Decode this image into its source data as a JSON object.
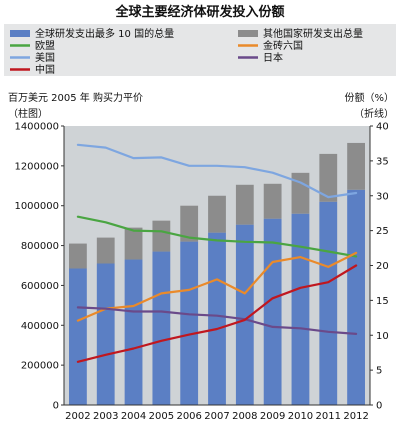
{
  "chart_data": {
    "type": "bar",
    "title": "全球主要经济体研发投入份额",
    "left_axis_caption": "百万美元 2005 年 购买力平价",
    "left_axis_sub": "（柱图）",
    "right_axis_caption": "份额（%）",
    "right_axis_sub": "（折线）",
    "categories": [
      "2002",
      "2003",
      "2004",
      "2005",
      "2006",
      "2007",
      "2008",
      "2009",
      "2010",
      "2011",
      "2012"
    ],
    "y_left": {
      "lim": [
        0,
        1400000
      ],
      "ticks": [
        "0",
        "200000",
        "400000",
        "600000",
        "800000",
        "1000000",
        "1200000",
        "1400000"
      ]
    },
    "y_right": {
      "lim": [
        0,
        40
      ],
      "ticks": [
        "0",
        "5",
        "10",
        "15",
        "20",
        "25",
        "30",
        "35",
        "40"
      ]
    },
    "stack_series": [
      {
        "name": "全球研发支出最多 10 国的总量",
        "color": "#5b7fc4",
        "values": [
          685000,
          710000,
          730000,
          770000,
          820000,
          865000,
          905000,
          935000,
          960000,
          1020000,
          1080000
        ]
      },
      {
        "name": "其他国家研发支出总量",
        "color": "#8c8c8c",
        "values": [
          125000,
          130000,
          160000,
          155000,
          180000,
          185000,
          200000,
          175000,
          205000,
          240000,
          235000
        ]
      }
    ],
    "line_series": [
      {
        "name": "欧盟",
        "color": "#4aa542",
        "values": [
          27.0,
          26.2,
          25.0,
          24.9,
          24.0,
          23.6,
          23.4,
          23.3,
          22.7,
          22.0,
          21.3
        ]
      },
      {
        "name": "金砖六国",
        "color": "#ea8a2a",
        "values": [
          12.1,
          13.8,
          14.2,
          16.0,
          16.5,
          18.0,
          16.0,
          20.5,
          21.2,
          19.8,
          21.8
        ]
      },
      {
        "name": "美国",
        "color": "#7ea6e0",
        "values": [
          37.3,
          36.9,
          35.4,
          35.5,
          34.3,
          34.3,
          34.1,
          33.3,
          31.9,
          29.8,
          30.4
        ]
      },
      {
        "name": "日本",
        "color": "#6a4a8a",
        "values": [
          14.0,
          13.8,
          13.4,
          13.4,
          13.0,
          12.8,
          12.3,
          11.2,
          11.0,
          10.5,
          10.2
        ]
      },
      {
        "name": "中国",
        "color": "#c0171f",
        "values": [
          6.2,
          7.2,
          8.1,
          9.2,
          10.1,
          10.9,
          12.2,
          15.3,
          16.8,
          17.6,
          20.0
        ]
      }
    ],
    "legend": [
      {
        "series": "全球研发支出最多 10 国的总量",
        "mark": "bar"
      },
      {
        "series": "其他国家研发支出总量",
        "mark": "bar"
      },
      {
        "series": "欧盟",
        "mark": "line"
      },
      {
        "series": "金砖六国",
        "mark": "line"
      },
      {
        "series": "美国",
        "mark": "line"
      },
      {
        "series": "日本",
        "mark": "line"
      },
      {
        "series": "中国",
        "mark": "line"
      }
    ],
    "legend_placement": "top",
    "grid": false,
    "bar_background": "#cfd3d6"
  }
}
